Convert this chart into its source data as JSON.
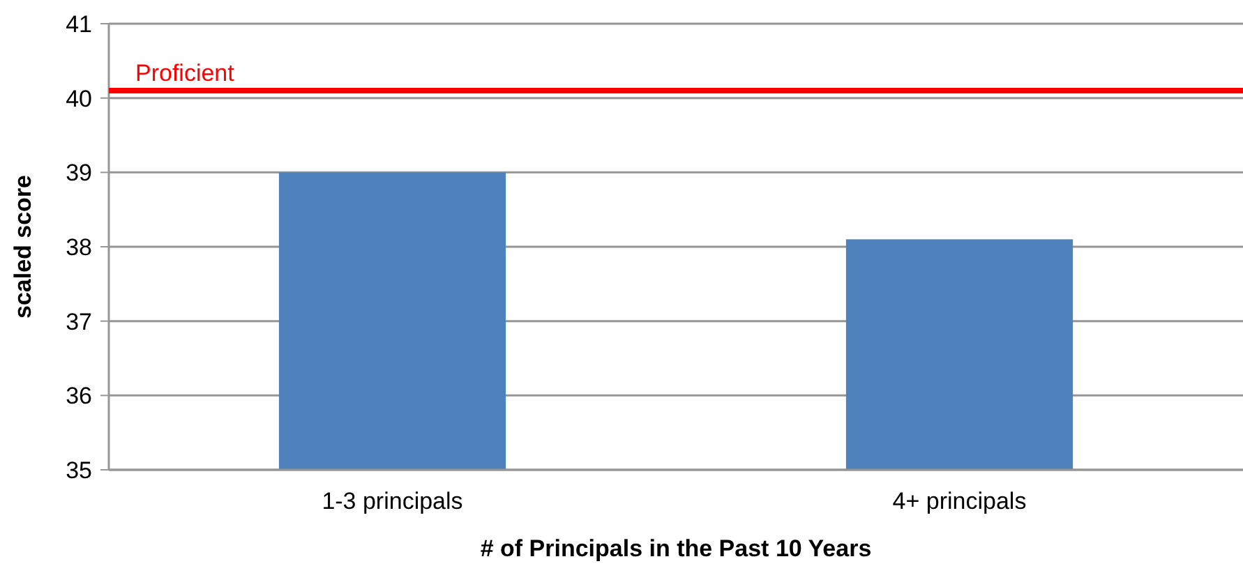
{
  "chart_data": {
    "type": "bar",
    "xlabel": "# of Principals in the Past 10 Years",
    "ylabel": "scaled score",
    "categories": [
      "1-3 principals",
      "4+ principals"
    ],
    "values": [
      39.0,
      38.1
    ],
    "color": "#4f81bd",
    "ylim": [
      35,
      41
    ],
    "yticks": [
      35,
      36,
      37,
      38,
      39,
      40,
      41
    ],
    "grid": "y",
    "ref_lines": [
      {
        "axis": "y",
        "value": 40.1,
        "label": "Proficient",
        "color": "#ff0000"
      }
    ]
  }
}
